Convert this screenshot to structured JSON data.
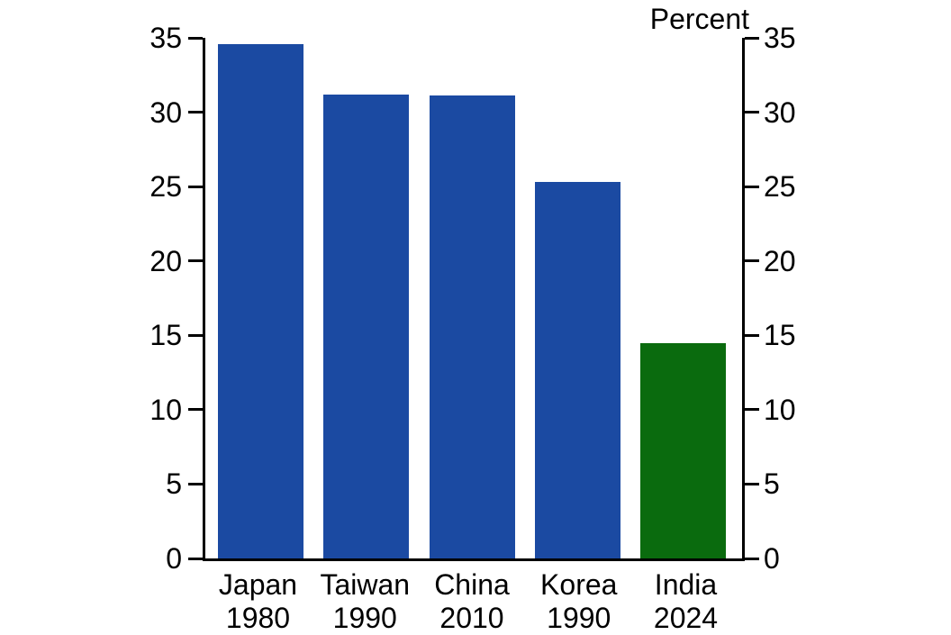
{
  "chart_data": {
    "type": "bar",
    "title": "",
    "unit_label": "Percent",
    "categories": [
      {
        "country": "Japan",
        "year": "1980"
      },
      {
        "country": "Taiwan",
        "year": "1990"
      },
      {
        "country": "China",
        "year": "2010"
      },
      {
        "country": "Korea",
        "year": "1990"
      },
      {
        "country": "India",
        "year": "2024"
      }
    ],
    "values": [
      34.6,
      31.2,
      31.1,
      25.3,
      14.5
    ],
    "bar_colors": [
      "#1b4aa2",
      "#1b4aa2",
      "#1b4aa2",
      "#1b4aa2",
      "#0a6b0e"
    ],
    "ylim": [
      0,
      35
    ],
    "yticks": [
      0,
      5,
      10,
      15,
      20,
      25,
      30,
      35
    ],
    "axis_color": "#000000",
    "legend_position": "none",
    "grid": false
  }
}
